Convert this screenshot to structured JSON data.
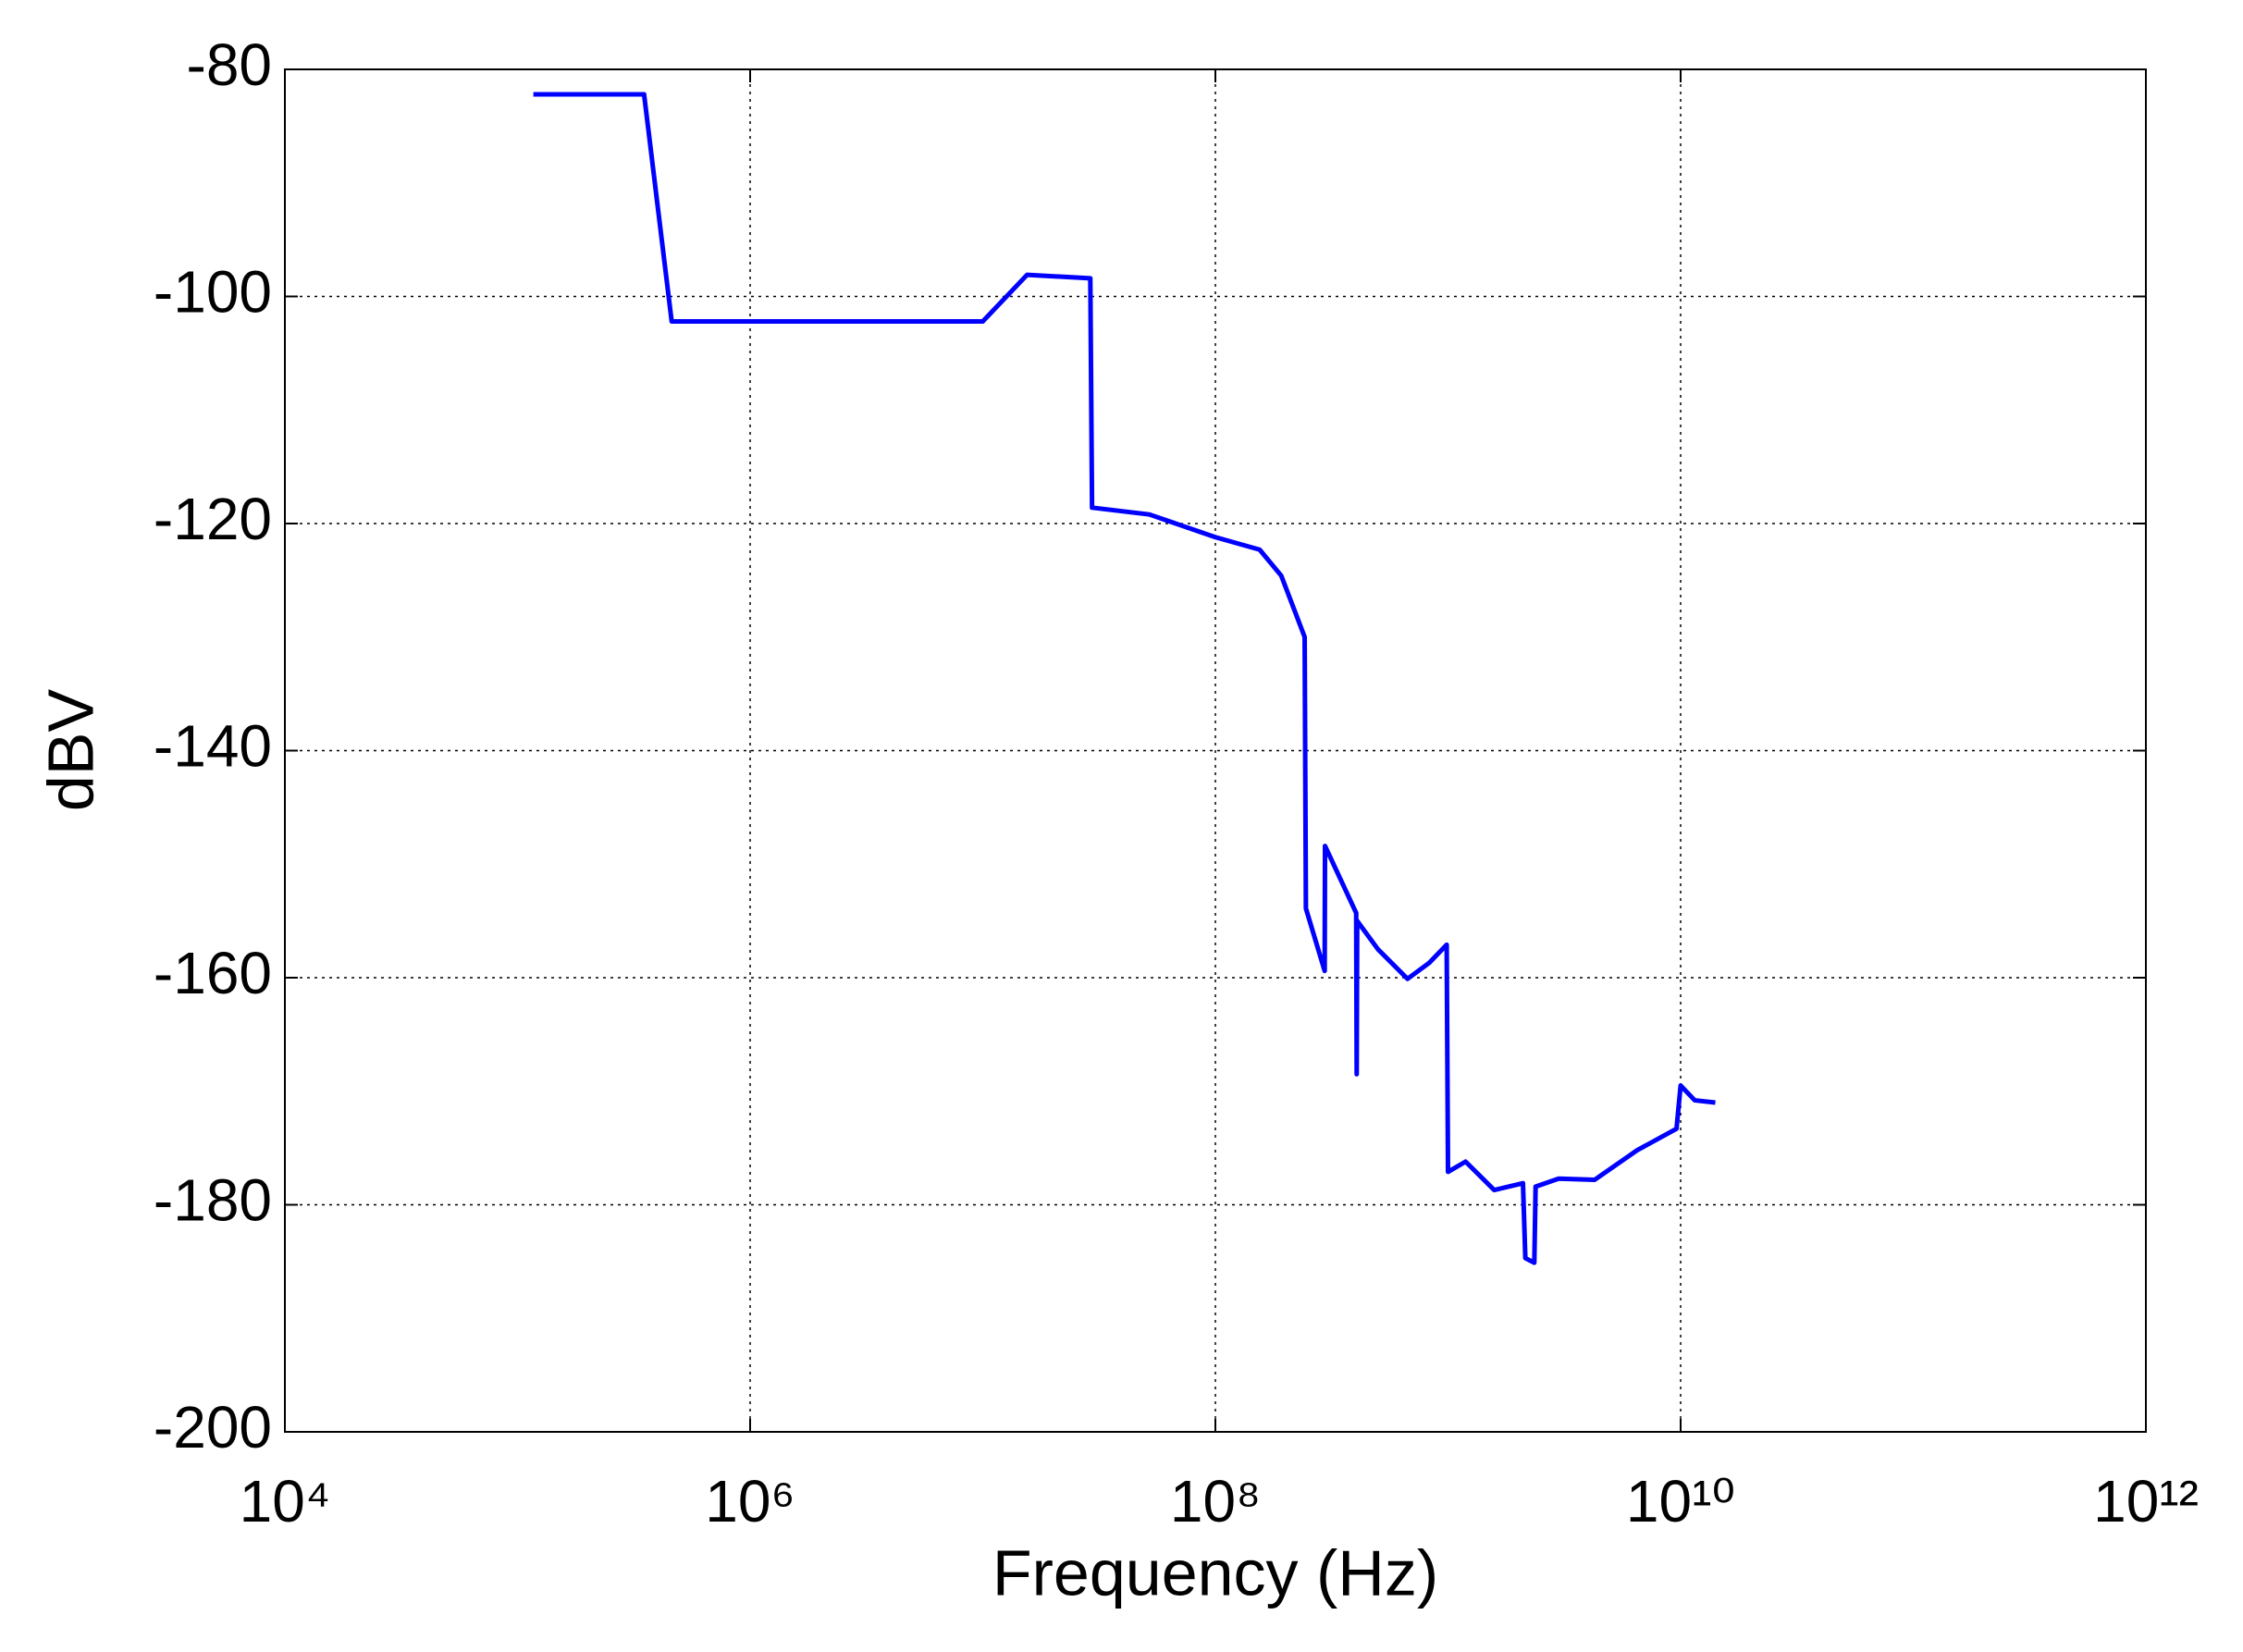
{
  "chart_data": {
    "type": "line",
    "xlabel": "Frequency (Hz)",
    "ylabel": "dBV",
    "xscale": "log",
    "grid": true,
    "xlim": [
      10000,
      1000000000000
    ],
    "xticks": [
      {
        "value": 10000,
        "label": "10⁴"
      },
      {
        "value": 1000000,
        "label": "10⁶"
      },
      {
        "value": 100000000,
        "label": "10⁸"
      },
      {
        "value": 10000000000,
        "label": "10¹⁰"
      },
      {
        "value": 1000000000000,
        "label": "10¹²"
      }
    ],
    "ylim": [
      -200,
      -80
    ],
    "yticks": [
      -200,
      -180,
      -160,
      -140,
      -120,
      -100,
      -80
    ],
    "series": [
      {
        "color": "#0000ff",
        "x": [
          117000,
          350000,
          460000,
          10000000,
          15500000,
          29000000,
          29500000,
          52000000,
          100000000,
          155000000,
          192000000,
          242000000,
          245000000,
          295000000,
          296000000,
          403000000,
          405000000,
          407000000,
          500000000,
          670000000,
          830000000,
          987000000,
          1000000000,
          1190000000,
          1580000000,
          2100000000,
          2150000000,
          2350000000,
          2380000000,
          2990000000,
          4270000000,
          6500000000,
          9600000000,
          10000000000,
          11500000000,
          14100000000
        ],
        "values": [
          -82.2,
          -82.2,
          -102.2,
          -102.2,
          -98.1,
          -98.4,
          -118.6,
          -119.2,
          -121.2,
          -122.3,
          -124.6,
          -130,
          -153.9,
          -159.4,
          -148.4,
          -154.3,
          -168.5,
          -155,
          -157.5,
          -160.1,
          -158.7,
          -157.1,
          -177.1,
          -176.2,
          -178.7,
          -178.1,
          -184.7,
          -185.1,
          -178.4,
          -177.7,
          -177.8,
          -175.2,
          -173.3,
          -169.5,
          -170.8,
          -171
        ]
      }
    ]
  }
}
